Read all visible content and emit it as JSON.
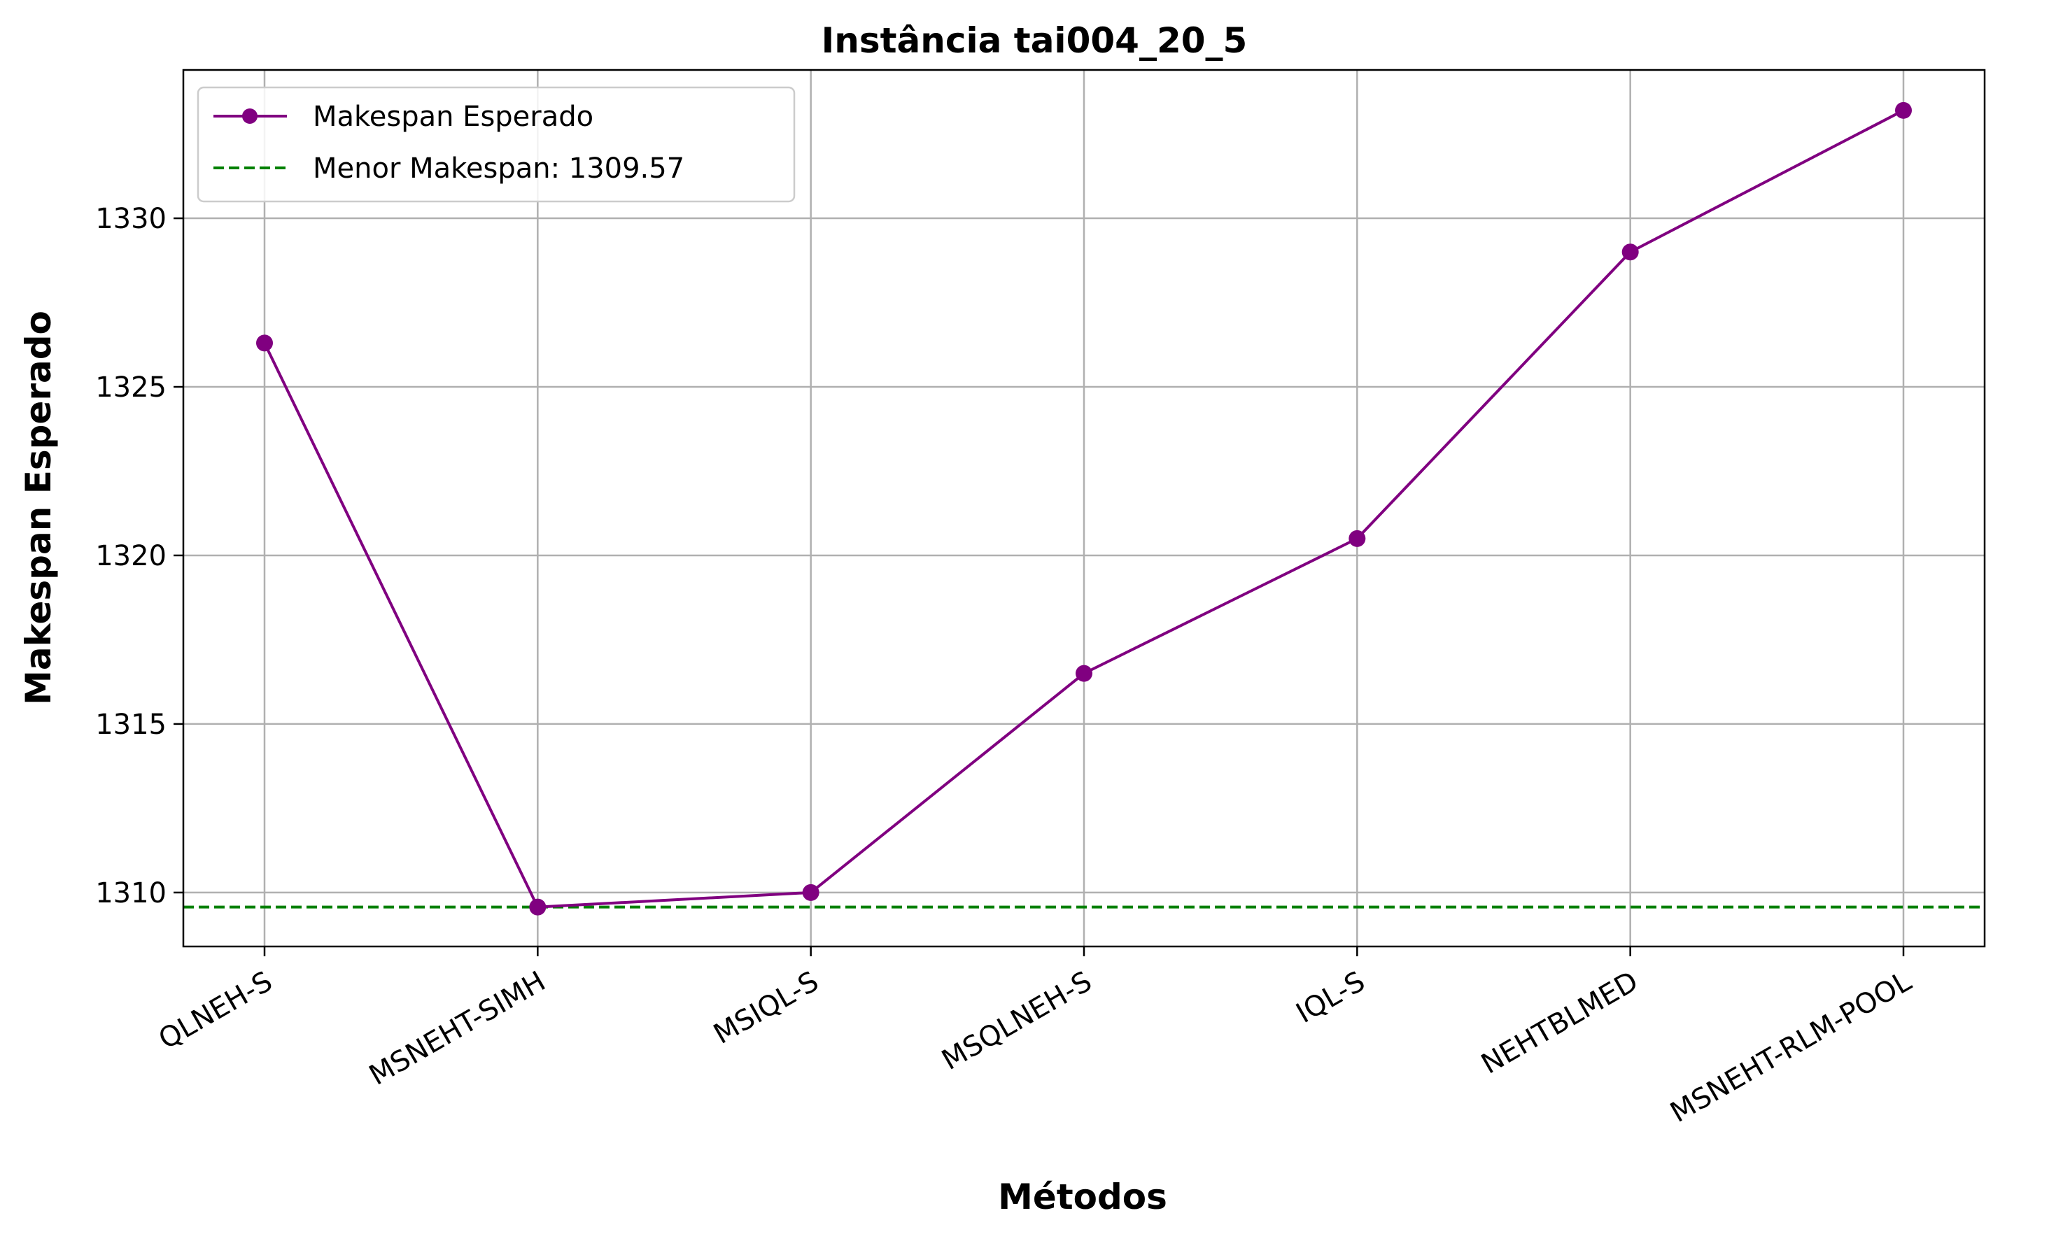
{
  "chart_data": {
    "type": "line",
    "title": "Instância tai004_20_5",
    "xlabel": "Métodos",
    "ylabel": "Makespan Esperado",
    "categories": [
      "QLNEH-S",
      "MSNEHT-SIMH",
      "MSIQL-S",
      "MSQLNEH-S",
      "IQL-S",
      "NEHTBLMED",
      "MSNEHT-RLM-POOL"
    ],
    "series": [
      {
        "name": "Makespan Esperado",
        "color": "#800080",
        "values": [
          1326.3,
          1309.57,
          1310.0,
          1316.5,
          1320.5,
          1329.0,
          1333.2
        ]
      }
    ],
    "reference_line": {
      "label": "Menor Makespan: 1309.57",
      "value": 1309.57,
      "color": "#008000",
      "style": "dashed"
    },
    "yticks": [
      1310,
      1315,
      1320,
      1325,
      1330
    ],
    "ylim": [
      1308.4,
      1334.4
    ],
    "grid": true,
    "legend_position": "top-left"
  }
}
